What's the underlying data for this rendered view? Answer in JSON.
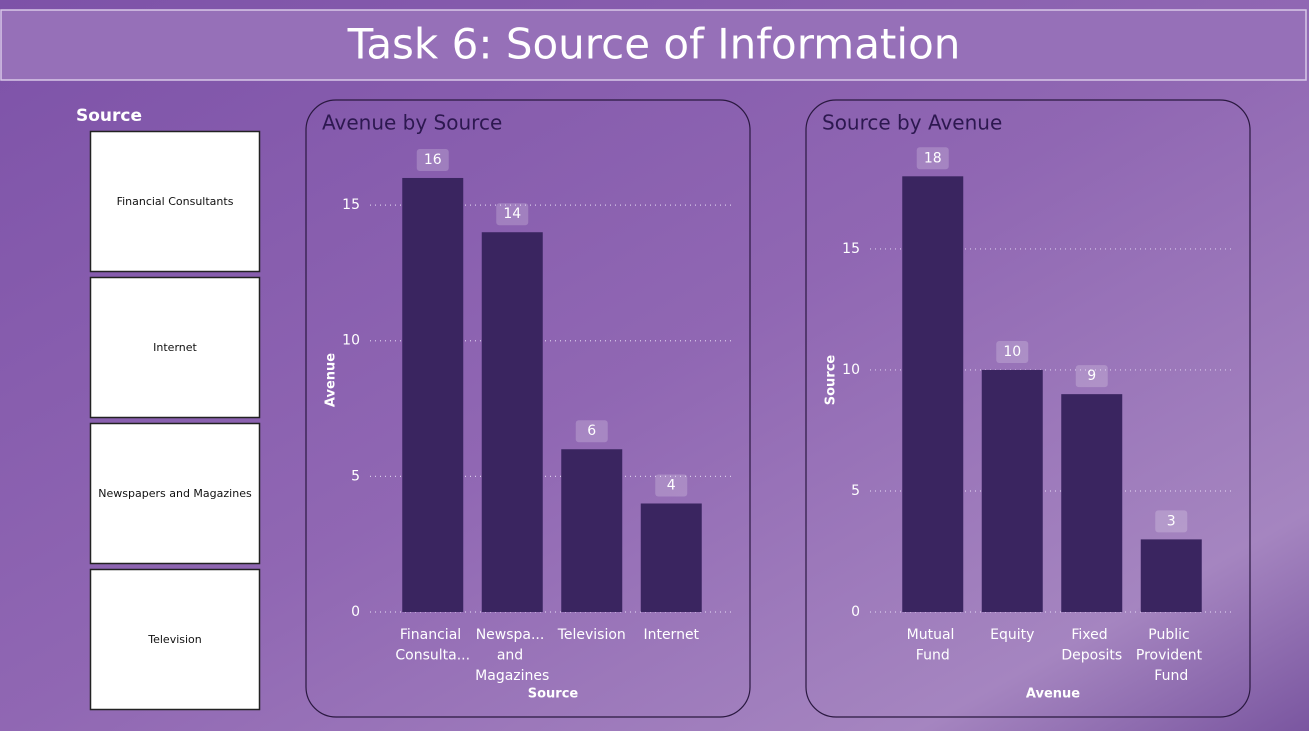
{
  "title": "Task 6: Source of Information",
  "slicer": {
    "label": "Source",
    "items": [
      "Financial Consultants",
      "Internet",
      "Newspapers and Magazines",
      "Television"
    ]
  },
  "chart_data": [
    {
      "type": "bar",
      "title": "Avenue by Source",
      "x_label": "Source",
      "y_label": "Avenue",
      "categories": [
        "Financial Consulta...",
        "Newspa... and Magazines",
        "Television",
        "Internet"
      ],
      "values": [
        16,
        14,
        6,
        4
      ],
      "color": "#3a2560",
      "ylim": [
        0,
        17.4
      ],
      "yticks": [
        0,
        5,
        10,
        15
      ],
      "grid": true
    },
    {
      "type": "bar",
      "title": "Source by Avenue",
      "x_label": "Avenue",
      "y_label": "Source",
      "categories": [
        "Mutual Fund",
        "Equity",
        "Fixed Deposits",
        "Public Provident Fund"
      ],
      "values": [
        18,
        10,
        9,
        3
      ],
      "color": "#3a2560",
      "ylim": [
        0,
        19.5
      ],
      "yticks": [
        0,
        5,
        10,
        15
      ],
      "grid": true
    }
  ]
}
